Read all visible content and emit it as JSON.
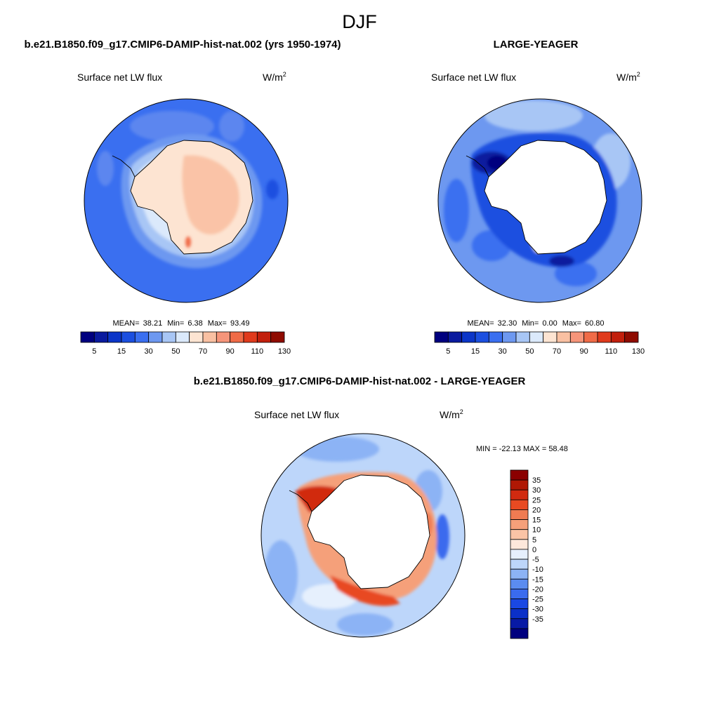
{
  "page": {
    "title": "DJF"
  },
  "colors": {
    "abs_scale": [
      "#00007f",
      "#0a1a9e",
      "#0b35c8",
      "#1b4fe0",
      "#3a6ff0",
      "#6d98f0",
      "#a8c6f5",
      "#dbe9fb",
      "#fde4d2",
      "#f9c0a2",
      "#f6957a",
      "#f06b47",
      "#e03a1c",
      "#c21f0c",
      "#8f0b00"
    ],
    "diff_scale": [
      "#00007f",
      "#081aa5",
      "#0b30c8",
      "#1a48e3",
      "#3a6bee",
      "#5b8cf0",
      "#8cb3f5",
      "#bdd6fa",
      "#e6f0fd",
      "#fde8db",
      "#fac4a6",
      "#f5a07a",
      "#ef7b52",
      "#e84a22",
      "#d12a10",
      "#b01804",
      "#8b0000"
    ],
    "land": "#ffffff",
    "coast": "#000000"
  },
  "panels": [
    {
      "title": "b.e21.B1850.f09_g17.CMIP6-DAMIP-hist-nat.002 (yrs 1950-1974)",
      "variable": "Surface net LW flux",
      "units_base": "W/m",
      "units_exp": "2",
      "stats": {
        "mean_label": "MEAN=",
        "mean": "38.21",
        "min_label": "Min=",
        "min": "6.38",
        "max_label": "Max=",
        "max": "93.49"
      },
      "colorbar_labels": [
        "5",
        "15",
        "30",
        "50",
        "70",
        "90",
        "110",
        "130"
      ]
    },
    {
      "title": "LARGE-YEAGER",
      "variable": "Surface net LW flux",
      "units_base": "W/m",
      "units_exp": "2",
      "stats": {
        "mean_label": "MEAN=",
        "mean": "32.30",
        "min_label": "Min=",
        "min": "0.00",
        "max_label": "Max=",
        "max": "60.80"
      },
      "colorbar_labels": [
        "5",
        "15",
        "30",
        "50",
        "70",
        "90",
        "110",
        "130"
      ]
    },
    {
      "title": "b.e21.B1850.f09_g17.CMIP6-DAMIP-hist-nat.002 - LARGE-YEAGER",
      "variable": "Surface net LW flux",
      "units_base": "W/m",
      "units_exp": "2",
      "minmax_text": "MIN = -22.13 MAX =  58.48",
      "colorbar_labels": [
        "35",
        "30",
        "25",
        "20",
        "15",
        "10",
        "5",
        "0",
        "-5",
        "-10",
        "-15",
        "-20",
        "-25",
        "-30",
        "-35"
      ]
    }
  ]
}
